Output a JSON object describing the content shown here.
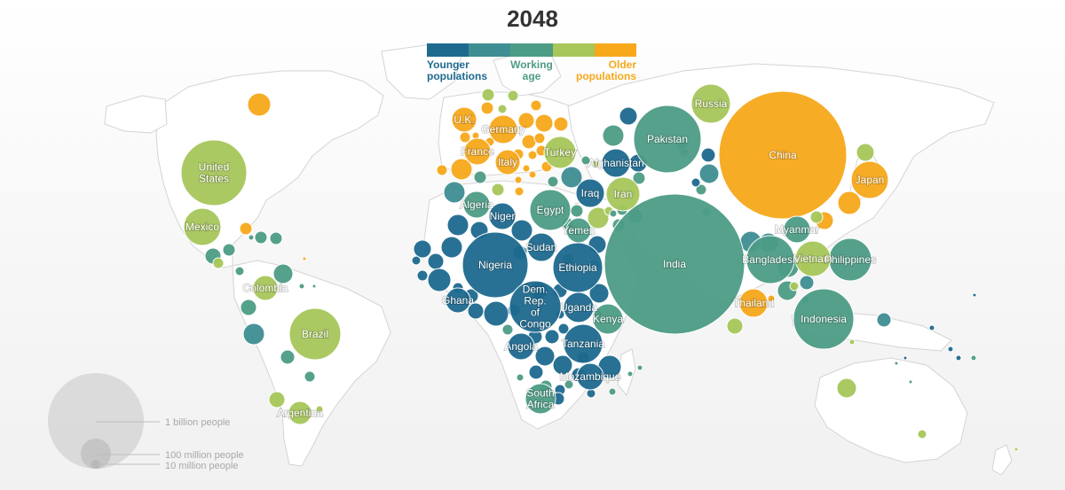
{
  "year_title": "2048",
  "legend": {
    "colors": [
      "#1e6a8f",
      "#3f8e93",
      "#4d9c86",
      "#a7c75a",
      "#f7a81b"
    ],
    "younger_label": "Younger populations",
    "working_label": "Working age",
    "older_label": "Older populations"
  },
  "size_scale": {
    "billion_label": "1 billion people",
    "hundred_million_label": "100 million people",
    "ten_million_label": "10 million people"
  },
  "colors": {
    "young": "#1e6a8f",
    "teal": "#3f8e93",
    "working": "#4d9c86",
    "lime": "#a7c75a",
    "old": "#f7a81b",
    "land": "#ffffff",
    "border": "#d4d4d4",
    "scale_fill": "#d6d6d6"
  },
  "labeled_countries": [
    {
      "name": "China",
      "label": "China",
      "pop_millions": 1310,
      "class": "old"
    },
    {
      "name": "India",
      "label": "India",
      "pop_millions": 1640,
      "class": "working"
    },
    {
      "name": "United States",
      "label": "United States",
      "pop_millions": 375,
      "class": "lime"
    },
    {
      "name": "Mexico",
      "label": "Mexico",
      "pop_millions": 150,
      "class": "lime"
    },
    {
      "name": "Brazil",
      "label": "Brazil",
      "pop_millions": 230,
      "class": "lime"
    },
    {
      "name": "Colombia",
      "label": "Colombia",
      "pop_millions": 60,
      "class": "lime"
    },
    {
      "name": "Argentina",
      "label": "Argentina",
      "pop_millions": 50,
      "class": "lime"
    },
    {
      "name": "U.K.",
      "label": "U.K.",
      "pop_millions": 72,
      "class": "old"
    },
    {
      "name": "Germany",
      "label": "Germany",
      "pop_millions": 82,
      "class": "old"
    },
    {
      "name": "France",
      "label": "France",
      "pop_millions": 68,
      "class": "old"
    },
    {
      "name": "Italy",
      "label": "Italy",
      "pop_millions": 56,
      "class": "old"
    },
    {
      "name": "Turkey",
      "label": "Turkey",
      "pop_millions": 95,
      "class": "lime"
    },
    {
      "name": "Russia",
      "label": "Russia",
      "pop_millions": 135,
      "class": "lime"
    },
    {
      "name": "Pakistan",
      "label": "Pakistan",
      "pop_millions": 340,
      "class": "working"
    },
    {
      "name": "Afghanistan",
      "label": "Afghanistan",
      "pop_millions": 70,
      "class": "young"
    },
    {
      "name": "Iraq",
      "label": "Iraq",
      "pop_millions": 75,
      "class": "young"
    },
    {
      "name": "Iran",
      "label": "Iran",
      "pop_millions": 100,
      "class": "lime"
    },
    {
      "name": "Algeria",
      "label": "Algeria",
      "pop_millions": 60,
      "class": "working"
    },
    {
      "name": "Egypt",
      "label": "Egypt",
      "pop_millions": 150,
      "class": "working"
    },
    {
      "name": "Niger",
      "label": "Niger",
      "pop_millions": 70,
      "class": "young"
    },
    {
      "name": "Nigeria",
      "label": "Nigeria",
      "pop_millions": 400,
      "class": "young"
    },
    {
      "name": "Sudan",
      "label": "Sudan",
      "pop_millions": 80,
      "class": "young"
    },
    {
      "name": "Yemen",
      "label": "Yemen",
      "pop_millions": 55,
      "class": "working"
    },
    {
      "name": "Ethiopia",
      "label": "Ethiopia",
      "pop_millions": 220,
      "class": "young"
    },
    {
      "name": "Ghana",
      "label": "Ghana",
      "pop_millions": 50,
      "class": "young"
    },
    {
      "name": "Dem. Rep. of Congo",
      "label": "Dem. Rep. of Congo",
      "pop_millions": 240,
      "class": "young"
    },
    {
      "name": "Uganda",
      "label": "Uganda",
      "pop_millions": 90,
      "class": "young"
    },
    {
      "name": "Kenya",
      "label": "Kenya",
      "pop_millions": 85,
      "class": "working"
    },
    {
      "name": "Angola",
      "label": "Angola",
      "pop_millions": 70,
      "class": "young"
    },
    {
      "name": "Tanzania",
      "label": "Tanzania",
      "pop_millions": 130,
      "class": "young"
    },
    {
      "name": "Mozambique",
      "label": "Mozambique",
      "pop_millions": 70,
      "class": "young"
    },
    {
      "name": "South Africa",
      "label": "South Africa",
      "pop_millions": 70,
      "class": "working"
    },
    {
      "name": "Myanmar",
      "label": "Myanmar",
      "pop_millions": 60,
      "class": "working"
    },
    {
      "name": "Bangladesh",
      "label": "Bangladesh",
      "pop_millions": 200,
      "class": "working"
    },
    {
      "name": "Vietnam",
      "label": "Vietnam",
      "pop_millions": 105,
      "class": "lime"
    },
    {
      "name": "Philippines",
      "label": "Philippines",
      "pop_millions": 160,
      "class": "working"
    },
    {
      "name": "Thailand",
      "label": "Thailand",
      "pop_millions": 65,
      "class": "old"
    },
    {
      "name": "Indonesia",
      "label": "Indonesia",
      "pop_millions": 320,
      "class": "working"
    },
    {
      "name": "Japan",
      "label": "Japan",
      "pop_millions": 105,
      "class": "old"
    }
  ]
}
